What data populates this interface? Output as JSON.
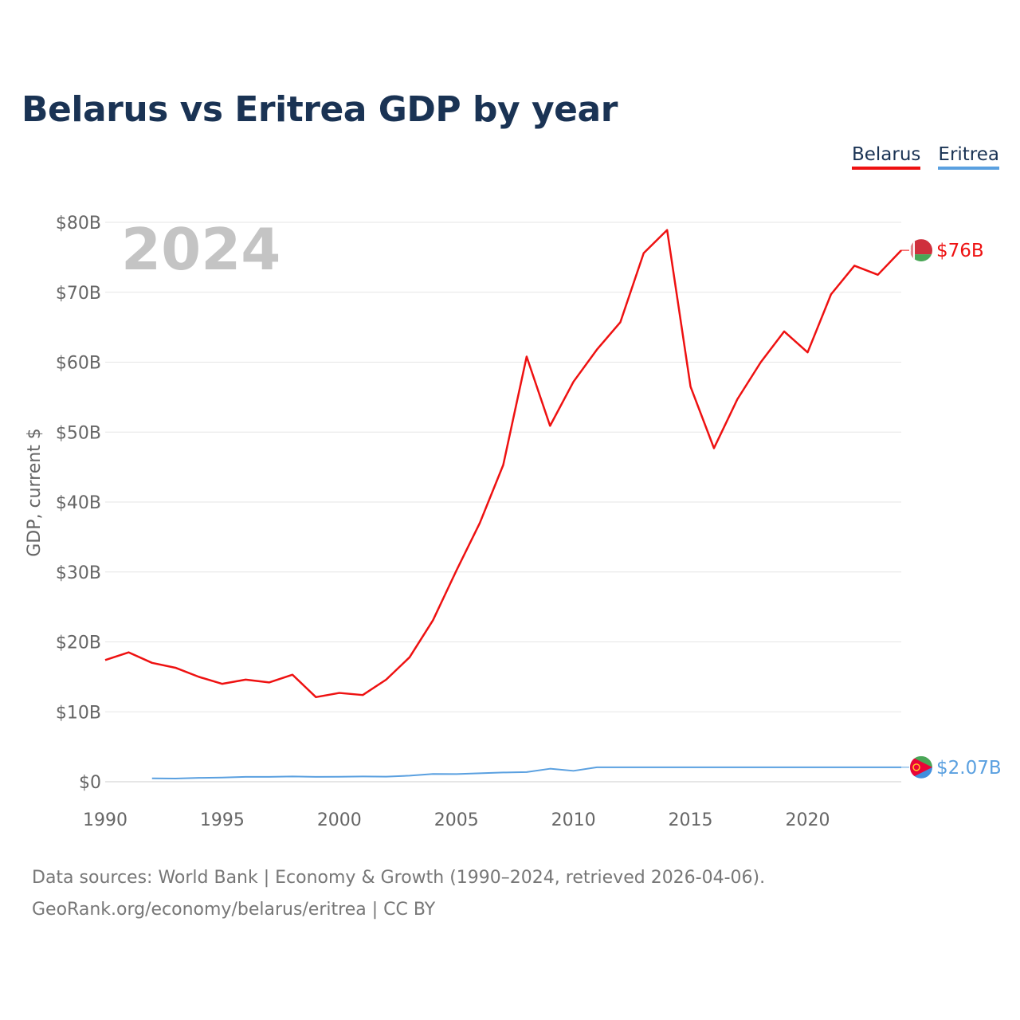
{
  "title": "Belarus vs Eritrea GDP by year",
  "legend": [
    {
      "label": "Belarus",
      "color": "#ee1111"
    },
    {
      "label": "Eritrea",
      "color": "#5aa0e0"
    }
  ],
  "year_watermark": "2024",
  "footer": {
    "line1": "Data sources: World Bank | Economy & Growth (1990–2024, retrieved 2026-04-06).",
    "line2": "GeoRank.org/economy/belarus/eritrea | CC BY"
  },
  "chart_data": {
    "type": "line",
    "title": "Belarus vs Eritrea GDP by year",
    "xlabel": "",
    "ylabel": "GDP, current $",
    "xlim": [
      1990,
      2024
    ],
    "ylim": [
      0,
      80
    ],
    "y_unit": "billion USD",
    "y_ticks": [
      {
        "value": 0,
        "label": "$0"
      },
      {
        "value": 10,
        "label": "$10B"
      },
      {
        "value": 20,
        "label": "$20B"
      },
      {
        "value": 30,
        "label": "$30B"
      },
      {
        "value": 40,
        "label": "$40B"
      },
      {
        "value": 50,
        "label": "$50B"
      },
      {
        "value": 60,
        "label": "$60B"
      },
      {
        "value": 70,
        "label": "$70B"
      },
      {
        "value": 80,
        "label": "$80B"
      }
    ],
    "x_ticks": [
      {
        "value": 1990,
        "label": "1990"
      },
      {
        "value": 1995,
        "label": "1995"
      },
      {
        "value": 2000,
        "label": "2000"
      },
      {
        "value": 2005,
        "label": "2005"
      },
      {
        "value": 2010,
        "label": "2010"
      },
      {
        "value": 2015,
        "label": "2015"
      },
      {
        "value": 2020,
        "label": "2020"
      }
    ],
    "grid": true,
    "legend_position": "top-right",
    "series": [
      {
        "name": "Belarus",
        "color": "#ee1111",
        "end_label": "$76B",
        "x": [
          1990,
          1991,
          1992,
          1993,
          1994,
          1995,
          1996,
          1997,
          1998,
          1999,
          2000,
          2001,
          2002,
          2003,
          2004,
          2005,
          2006,
          2007,
          2008,
          2009,
          2010,
          2011,
          2012,
          2013,
          2014,
          2015,
          2016,
          2017,
          2018,
          2019,
          2020,
          2021,
          2022,
          2023,
          2024
        ],
        "values": [
          17.4,
          18.5,
          17.0,
          16.3,
          15.0,
          14.0,
          14.6,
          14.2,
          15.3,
          12.1,
          12.7,
          12.4,
          14.6,
          17.8,
          23.1,
          30.2,
          37.0,
          45.3,
          60.8,
          50.9,
          57.2,
          61.8,
          65.7,
          75.6,
          78.9,
          56.5,
          47.7,
          54.7,
          60.0,
          64.4,
          61.4,
          69.7,
          73.8,
          72.5,
          76.0
        ]
      },
      {
        "name": "Eritrea",
        "color": "#5aa0e0",
        "end_label": "$2.07B",
        "x": [
          1992,
          1993,
          1994,
          1995,
          1996,
          1997,
          1998,
          1999,
          2000,
          2001,
          2002,
          2003,
          2004,
          2005,
          2006,
          2007,
          2008,
          2009,
          2010,
          2011,
          2024
        ],
        "values": [
          0.48,
          0.45,
          0.55,
          0.6,
          0.7,
          0.7,
          0.75,
          0.7,
          0.71,
          0.75,
          0.73,
          0.87,
          1.11,
          1.1,
          1.21,
          1.32,
          1.38,
          1.86,
          1.56,
          2.07,
          2.07
        ]
      }
    ]
  }
}
